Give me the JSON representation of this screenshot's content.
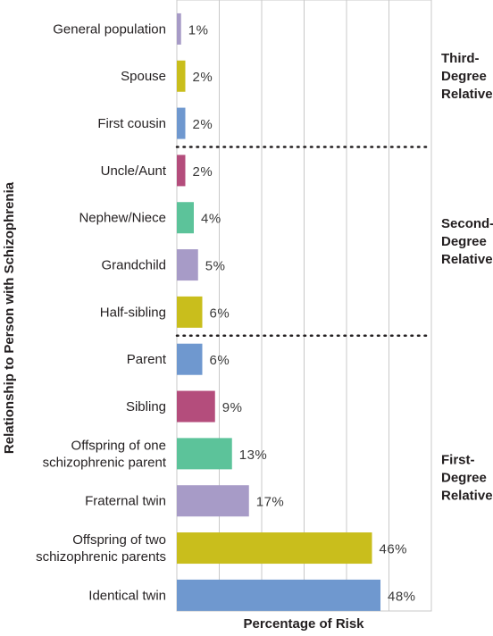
{
  "chart_data": {
    "type": "bar",
    "orientation": "horizontal",
    "title": "",
    "xlabel": "Percentage of Risk",
    "ylabel": "Relationship to Person with Schizophrenia",
    "xlim": [
      0,
      50
    ],
    "grid": true,
    "categories": [
      "General population",
      "Spouse",
      "First cousin",
      "Uncle/Aunt",
      "Nephew/Niece",
      "Grandchild",
      "Half-sibling",
      "Parent",
      "Sibling",
      "Offspring of one schizophrenic parent",
      "Fraternal twin",
      "Offspring of two schizophrenic parents",
      "Identical twin"
    ],
    "values": [
      1,
      2,
      2,
      2,
      4,
      5,
      6,
      6,
      9,
      13,
      17,
      46,
      48
    ],
    "value_labels": [
      "1%",
      "2%",
      "2%",
      "2%",
      "4%",
      "5%",
      "6%",
      "6%",
      "9%",
      "13%",
      "17%",
      "46%",
      "48%"
    ],
    "colors": [
      "#a79bc7",
      "#c9be1c",
      "#6f98cf",
      "#b44d7c",
      "#5cc39a",
      "#a79bc7",
      "#c9be1c",
      "#6f98cf",
      "#b44d7c",
      "#5cc39a",
      "#a79bc7",
      "#c9be1c",
      "#6f98cf"
    ],
    "groups": [
      {
        "label": [
          "Third-",
          "Degree",
          "Relative"
        ],
        "rows": [
          0,
          2
        ]
      },
      {
        "label": [
          "Second-",
          "Degree",
          "Relative"
        ],
        "rows": [
          3,
          6
        ]
      },
      {
        "label": [
          "First-",
          "Degree",
          "Relative"
        ],
        "rows": [
          7,
          12
        ]
      }
    ],
    "group_dividers_after_rows": [
      2,
      6
    ]
  }
}
